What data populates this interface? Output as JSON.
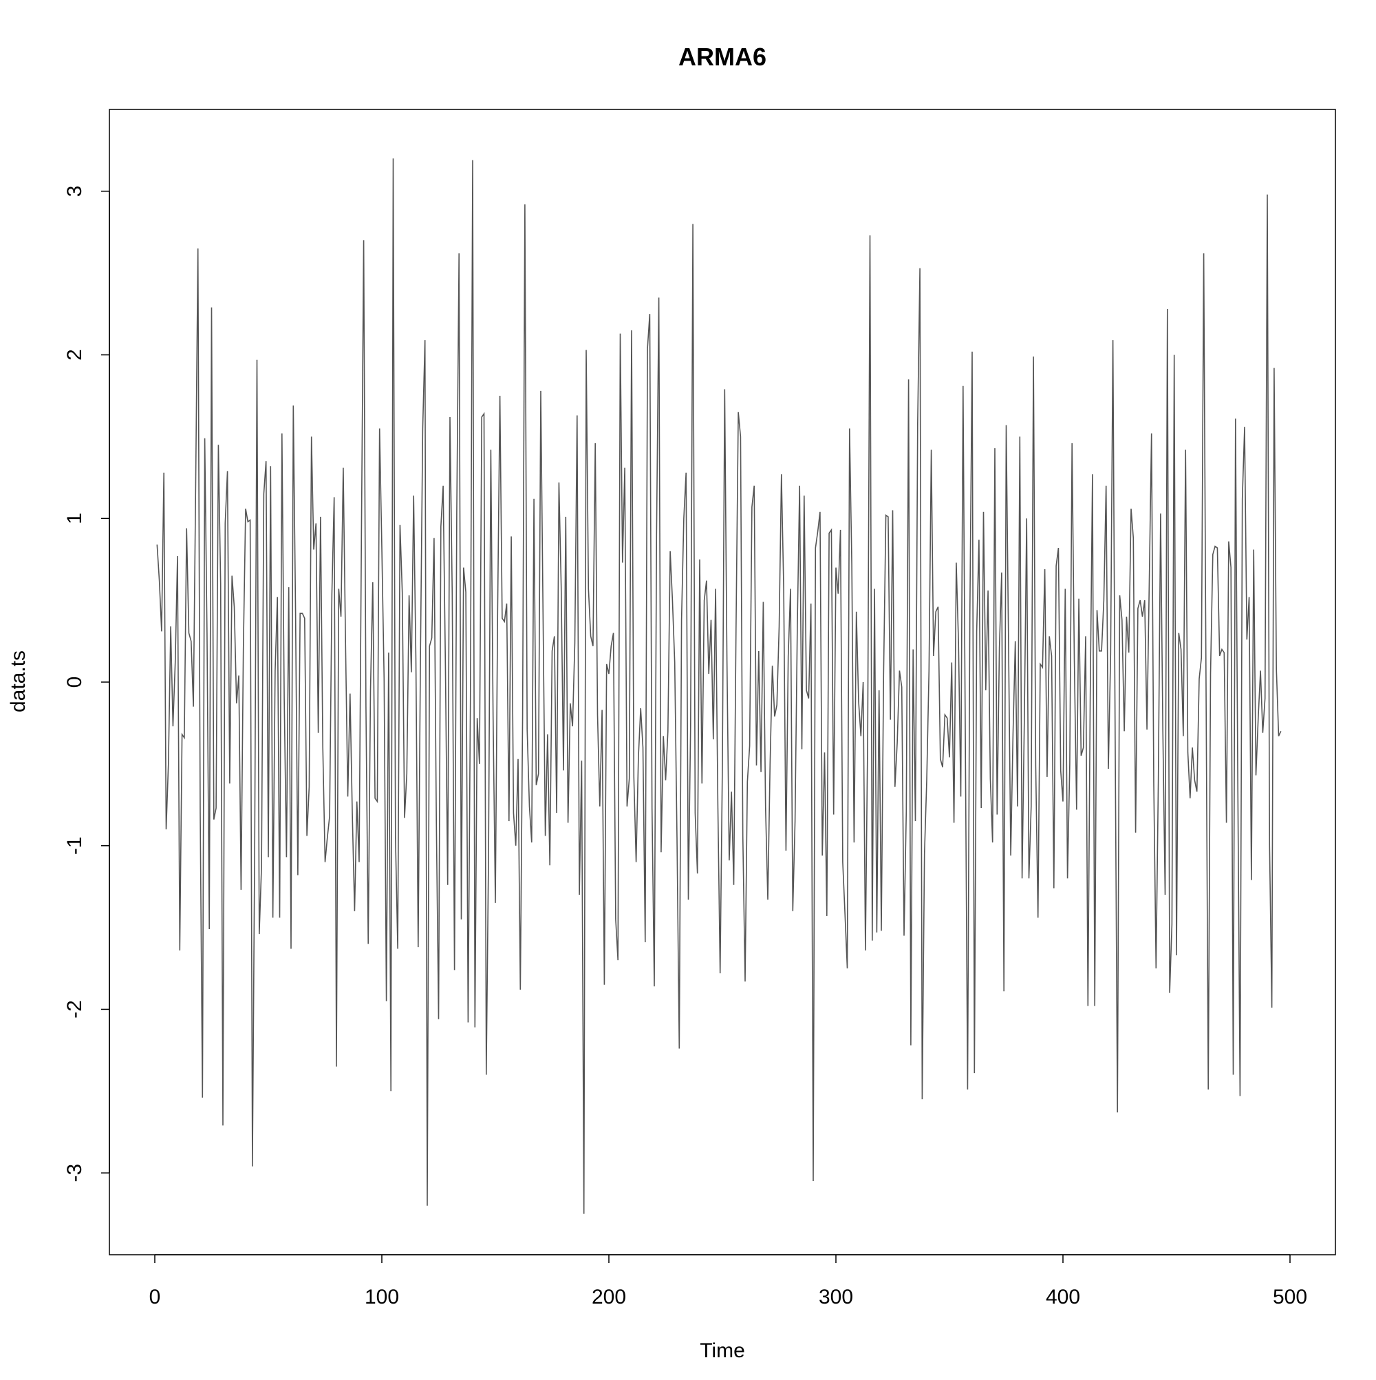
{
  "chart_data": {
    "type": "line",
    "title": "ARMA6",
    "xlabel": "Time",
    "ylabel": "data.ts",
    "xlim": [
      -20,
      520
    ],
    "ylim": [
      -3.5,
      3.5
    ],
    "x_ticks": [
      "0",
      "100",
      "200",
      "300",
      "400",
      "500"
    ],
    "y_ticks": [
      "-3",
      "-2",
      "-1",
      "0",
      "1",
      "2",
      "3"
    ],
    "grid": false,
    "legend": "none",
    "line_color": "#555555",
    "frame_color": "#000000",
    "x_start": 1,
    "x_step": 1,
    "series": [
      {
        "values": [
          0.84,
          0.62,
          0.31,
          1.28,
          -0.9,
          -0.5,
          0.34,
          -0.27,
          0.12,
          0.77,
          -1.64,
          -0.32,
          -0.34,
          0.94,
          0.3,
          0.25,
          -0.15,
          1.2,
          2.65,
          -0.8,
          -2.54,
          1.49,
          0.3,
          -1.51,
          2.29,
          -0.84,
          -0.77,
          1.45,
          0.6,
          -2.71,
          0.97,
          1.29,
          -0.62,
          0.65,
          0.46,
          -0.13,
          0.04,
          -1.27,
          0.2,
          1.06,
          0.98,
          0.99,
          -2.96,
          -1.0,
          1.97,
          -1.54,
          -1.13,
          1.15,
          1.35,
          -1.07,
          1.32,
          -1.44,
          0.07,
          0.52,
          -1.44,
          1.52,
          -0.1,
          -1.07,
          0.58,
          -1.63,
          1.69,
          0.42,
          -1.18,
          0.42,
          0.42,
          0.39,
          -0.94,
          -0.64,
          1.5,
          0.81,
          0.97,
          -0.31,
          1.01,
          -0.4,
          -1.1,
          -0.95,
          -0.82,
          0.54,
          1.13,
          -2.35,
          0.57,
          0.4,
          1.31,
          0.25,
          -0.7,
          -0.07,
          -0.81,
          -1.4,
          -0.73,
          -1.1,
          0.88,
          2.7,
          -0.15,
          -1.6,
          -0.05,
          0.61,
          -0.71,
          -0.73,
          1.55,
          0.82,
          0.02,
          -1.95,
          0.18,
          -2.5,
          3.2,
          -0.95,
          -1.63,
          0.96,
          0.55,
          -0.83,
          -0.56,
          0.53,
          0.06,
          1.14,
          0.14,
          -1.62,
          0.14,
          1.55,
          2.09,
          -3.2,
          0.22,
          0.27,
          0.88,
          -0.84,
          -2.06,
          0.95,
          1.2,
          0.1,
          -1.24,
          1.62,
          0.54,
          -1.76,
          1.03,
          2.62,
          -1.45,
          0.7,
          0.55,
          -2.08,
          -0.12,
          3.19,
          -2.11,
          -0.22,
          -0.5,
          1.62,
          1.64,
          -2.4,
          -1.05,
          1.42,
          -0.21,
          -1.35,
          0.43,
          1.75,
          0.39,
          0.37,
          0.48,
          -0.85,
          0.89,
          -0.8,
          -1.0,
          -0.47,
          -1.88,
          -0.21,
          2.92,
          -0.29,
          -0.76,
          -0.98,
          1.12,
          -0.63,
          -0.56,
          1.78,
          0.42,
          -0.94,
          -0.32,
          -1.12,
          0.19,
          0.28,
          -0.8,
          1.22,
          0.58,
          -0.54,
          1.01,
          -0.86,
          -0.13,
          -0.27,
          0.24,
          1.63,
          -1.3,
          -0.48,
          -3.25,
          2.03,
          0.57,
          0.28,
          0.22,
          1.46,
          -0.2,
          -0.76,
          -0.17,
          -1.85,
          0.11,
          0.05,
          0.22,
          0.3,
          -1.45,
          -1.7,
          2.13,
          0.73,
          1.31,
          -0.76,
          -0.59,
          2.15,
          -0.58,
          -1.1,
          -0.46,
          -0.16,
          -0.4,
          -1.59,
          2.04,
          2.25,
          -0.77,
          -1.86,
          0.9,
          2.35,
          -1.04,
          -0.33,
          -0.6,
          -0.3,
          0.8,
          0.5,
          0.12,
          -0.95,
          -2.24,
          0.38,
          1.0,
          1.28,
          -1.33,
          -0.26,
          2.8,
          -0.8,
          -1.17,
          0.75,
          -0.62,
          0.5,
          0.62,
          0.05,
          0.38,
          -0.35,
          0.57,
          -0.75,
          -1.78,
          -0.5,
          1.79,
          0.14,
          -1.09,
          -0.67,
          -1.24,
          0.32,
          1.65,
          1.5,
          -0.94,
          -1.83,
          -0.61,
          -0.39,
          1.07,
          1.2,
          -0.51,
          0.19,
          -0.55,
          0.49,
          -0.76,
          -1.33,
          -0.5,
          0.1,
          -0.21,
          -0.14,
          0.34,
          1.27,
          0.57,
          -1.03,
          0.16,
          0.57,
          -1.4,
          -0.85,
          0.34,
          1.2,
          -0.41,
          1.14,
          -0.05,
          -0.1,
          0.48,
          -3.05,
          0.82,
          0.92,
          1.04,
          -1.06,
          -0.43,
          -1.43,
          0.91,
          0.93,
          -0.81,
          0.7,
          0.54,
          0.93,
          -1.1,
          -1.42,
          -1.75,
          1.55,
          0.72,
          -0.98,
          0.43,
          -0.12,
          -0.33,
          0.0,
          -1.64,
          -0.31,
          2.73,
          -1.58,
          0.57,
          -1.53,
          -0.05,
          -1.52,
          0.05,
          1.02,
          1.01,
          -0.23,
          1.05,
          -0.64,
          -0.37,
          0.07,
          -0.03,
          -1.55,
          -0.79,
          1.85,
          -2.22,
          0.2,
          -0.85,
          1.58,
          2.53,
          -2.55,
          -1.05,
          -0.6,
          0.07,
          1.42,
          0.16,
          0.43,
          0.46,
          -0.47,
          -0.52,
          -0.2,
          -0.22,
          -0.46,
          0.12,
          -0.86,
          0.73,
          0.24,
          -0.7,
          1.81,
          -0.35,
          -2.49,
          0.41,
          2.02,
          -2.39,
          0.31,
          0.87,
          -0.77,
          1.04,
          -0.05,
          0.56,
          -0.59,
          -0.98,
          1.43,
          -0.81,
          0.21,
          0.67,
          -1.89,
          1.57,
          0.28,
          -1.06,
          -0.32,
          0.25,
          -0.76,
          1.5,
          -1.2,
          -0.22,
          1.0,
          -1.2,
          -0.76,
          1.99,
          -0.51,
          -1.44,
          0.11,
          0.09,
          0.69,
          -0.58,
          0.28,
          0.16,
          -1.26,
          0.71,
          0.82,
          -0.54,
          -0.73,
          0.57,
          -1.2,
          -0.5,
          1.46,
          0.14,
          -0.78,
          0.51,
          -0.45,
          -0.4,
          0.28,
          -1.98,
          -0.1,
          1.27,
          -1.98,
          0.44,
          0.19,
          0.19,
          0.5,
          1.2,
          -0.53,
          0.17,
          2.09,
          -0.35,
          -2.63,
          0.53,
          0.38,
          -0.3,
          0.4,
          0.18,
          1.06,
          0.88,
          -0.92,
          0.45,
          0.5,
          0.4,
          0.5,
          -0.29,
          0.6,
          1.52,
          -0.62,
          -1.75,
          -0.61,
          1.03,
          -0.3,
          -1.3,
          2.28,
          -1.9,
          -1.48,
          2.0,
          -1.67,
          0.3,
          0.2,
          -0.33,
          1.42,
          -0.43,
          -0.71,
          -0.4,
          -0.6,
          -0.67,
          0.02,
          0.15,
          2.62,
          0.03,
          -2.49,
          0.05,
          0.78,
          0.83,
          0.82,
          0.16,
          0.2,
          0.18,
          -0.86,
          0.86,
          0.7,
          -2.4,
          1.61,
          -0.6,
          -2.53,
          1.12,
          1.56,
          0.26,
          0.52,
          -1.21,
          0.81,
          -0.57,
          -0.22,
          0.07,
          -0.31,
          -0.1,
          2.98,
          -1.0,
          -1.99,
          1.92,
          0.08,
          -0.33,
          -0.3
        ]
      }
    ]
  }
}
